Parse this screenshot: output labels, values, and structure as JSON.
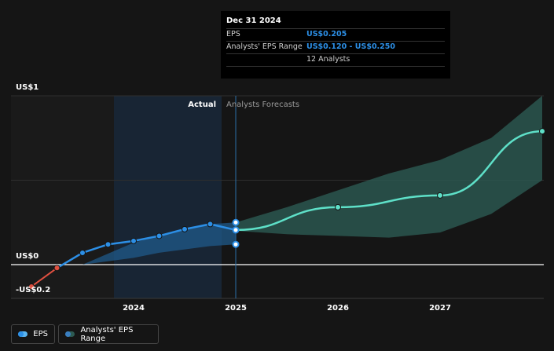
{
  "tooltip": {
    "date": "Dec 31 2024",
    "eps_label": "EPS",
    "eps_value": "US$0.205",
    "range_label": "Analysts' EPS Range",
    "range_value": "US$0.120 - US$0.250",
    "analysts": "12 Analysts"
  },
  "legend": {
    "eps": "EPS",
    "range": "Analysts' EPS Range"
  },
  "colors": {
    "background": "#151515",
    "eps_line": "#2c8fe6",
    "forecast_line": "#5ee0c8",
    "negative_line": "#e05040",
    "forecast_band": "#2c5a52",
    "actual_band": "#1f5a8a"
  },
  "chart_data": {
    "type": "line",
    "actual_label": "Actual",
    "forecast_label": "Analysts Forecasts",
    "y_tick_labels": [
      "US$1",
      "US$0",
      "-US$0.2"
    ],
    "x_tick_labels": [
      "2024",
      "2025",
      "2026",
      "2027"
    ],
    "ylim": [
      -0.2,
      1.0
    ],
    "xlim": [
      2023.0,
      2028.0
    ],
    "grid": true,
    "series": [
      {
        "name": "EPS",
        "x": [
          2023.0,
          2023.25,
          2023.5,
          2023.75,
          2024.0,
          2024.25,
          2024.5,
          2024.75,
          2025.0
        ],
        "y": [
          -0.13,
          -0.02,
          0.07,
          0.12,
          0.14,
          0.17,
          0.21,
          0.24,
          0.205
        ]
      },
      {
        "name": "Analysts Forecasts",
        "x": [
          2025.0,
          2026.0,
          2027.0,
          2028.0
        ],
        "y": [
          0.205,
          0.34,
          0.41,
          0.79
        ]
      }
    ],
    "bands": [
      {
        "name": "Analysts' EPS Range (historical)",
        "x": [
          2023.5,
          2024.0,
          2024.25,
          2024.5,
          2024.75,
          2025.0
        ],
        "low": [
          0.0,
          0.04,
          0.07,
          0.09,
          0.11,
          0.12
        ],
        "high": [
          0.0,
          0.13,
          0.17,
          0.21,
          0.24,
          0.25
        ]
      },
      {
        "name": "Analysts' EPS Range (forecast)",
        "x": [
          2025.0,
          2025.5,
          2026.0,
          2026.5,
          2027.0,
          2027.5,
          2028.0
        ],
        "low": [
          0.2,
          0.18,
          0.17,
          0.16,
          0.19,
          0.3,
          0.5
        ],
        "high": [
          0.25,
          0.34,
          0.44,
          0.54,
          0.62,
          0.75,
          1.0
        ]
      }
    ],
    "range_markers": [
      0.25,
      0.205,
      0.12
    ]
  }
}
